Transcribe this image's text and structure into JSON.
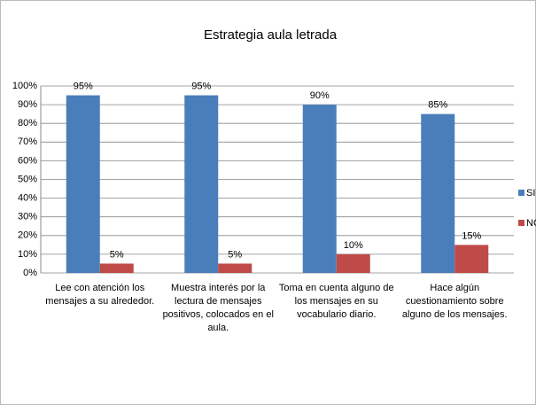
{
  "chart_data": {
    "type": "bar",
    "title": "Estrategia aula letrada",
    "categories": [
      "Lee con atención los mensajes a su alrededor.",
      "Muestra interés por la lectura de mensajes positivos, colocados en el aula.",
      "Toma en cuenta alguno de los mensajes en su vocabulario diario.",
      "Hace algún cuestionamiento sobre alguno de los mensajes."
    ],
    "series": [
      {
        "name": "SI",
        "color": "#4a7ebb",
        "values": [
          95,
          95,
          90,
          85
        ],
        "value_labels": [
          "95%",
          "95%",
          "90%",
          "85%"
        ]
      },
      {
        "name": "NO",
        "color": "#be4b48",
        "values": [
          5,
          5,
          10,
          15
        ],
        "value_labels": [
          "5%",
          "5%",
          "10%",
          "15%"
        ]
      }
    ],
    "ylim": [
      0,
      100
    ],
    "yticks": [
      {
        "value": 0,
        "label": "0%"
      },
      {
        "value": 10,
        "label": "10%"
      },
      {
        "value": 20,
        "label": "20%"
      },
      {
        "value": 30,
        "label": "30%"
      },
      {
        "value": 40,
        "label": "40%"
      },
      {
        "value": 50,
        "label": "50%"
      },
      {
        "value": 60,
        "label": "60%"
      },
      {
        "value": 70,
        "label": "70%"
      },
      {
        "value": 80,
        "label": "80%"
      },
      {
        "value": 90,
        "label": "90%"
      },
      {
        "value": 100,
        "label": "100%"
      }
    ],
    "grid": true,
    "legend": "right"
  }
}
